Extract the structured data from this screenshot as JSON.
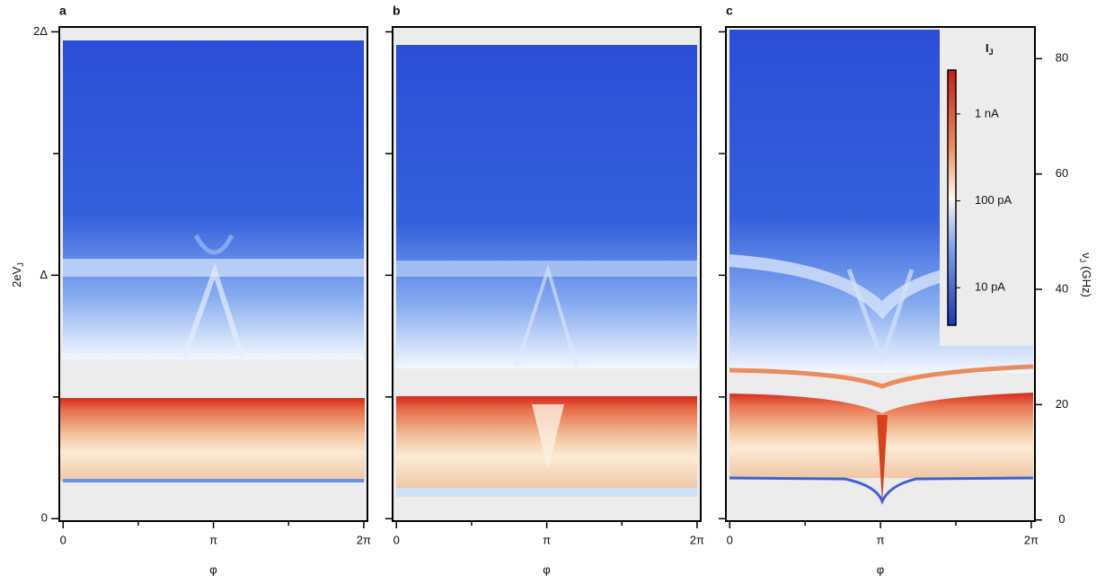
{
  "chart_data": [
    {
      "type": "heatmap",
      "title": "a",
      "xlabel": "φ",
      "ylabel": "2eV",
      "ylabel_sub": "J",
      "xlim": [
        -0.08,
        6.36
      ],
      "xticks": [
        {
          "value": 0,
          "label": "0"
        },
        {
          "value": 3.1416,
          "label": "π"
        },
        {
          "value": 6.2832,
          "label": "2π"
        }
      ],
      "xminor": [
        1.5708,
        4.7124
      ],
      "ylim": [
        -0.01,
        2.02
      ],
      "yticks": [
        {
          "value": 0,
          "label": "0"
        },
        {
          "value": 1,
          "label": "Δ"
        },
        {
          "value": 2,
          "label": "2Δ"
        }
      ],
      "yminor": [
        0.5,
        1.5
      ]
    },
    {
      "type": "heatmap",
      "title": "b",
      "xlabel": "φ",
      "xlim": [
        -0.08,
        6.36
      ],
      "xticks": [
        {
          "value": 0,
          "label": "0"
        },
        {
          "value": 3.1416,
          "label": "π"
        },
        {
          "value": 6.2832,
          "label": "2π"
        }
      ],
      "xminor": [
        1.5708,
        4.7124
      ],
      "ylim": [
        -0.01,
        2.02
      ],
      "ytickmarks": [
        0,
        0.5,
        1,
        1.5,
        2
      ]
    },
    {
      "type": "heatmap",
      "title": "c",
      "xlabel": "φ",
      "xlim": [
        -0.08,
        6.36
      ],
      "xticks": [
        {
          "value": 0,
          "label": "0"
        },
        {
          "value": 3.1416,
          "label": "π"
        },
        {
          "value": 6.2832,
          "label": "2π"
        }
      ],
      "xminor": [
        1.5708,
        4.7124
      ],
      "ylim": [
        -0.01,
        2.02
      ],
      "ytickmarks": [
        0,
        0.5,
        1,
        1.5,
        2
      ],
      "y2label": "ν",
      "y2label_sub": "J",
      "y2label_unit": "(GHz)",
      "y2lim": [
        -0.2,
        85.5
      ],
      "y2ticks": [
        0,
        20,
        40,
        60,
        80
      ],
      "colorbar": {
        "title": "I",
        "title_sub": "J",
        "scale": "log",
        "clim": [
          3.7,
          3200
        ],
        "ticks": [
          {
            "value": 1000,
            "label": "1 nA"
          },
          {
            "value": 100,
            "label": "100 pA"
          },
          {
            "value": 10,
            "label": "10 pA"
          }
        ]
      }
    }
  ]
}
